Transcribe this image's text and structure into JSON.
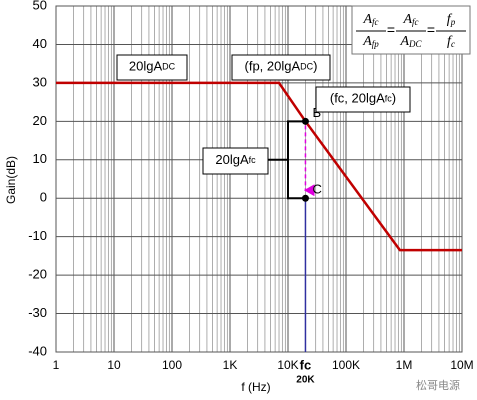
{
  "chart_data": {
    "type": "line",
    "xscale": "log",
    "xlim": [
      1,
      10000000
    ],
    "ylim": [
      -40,
      50
    ],
    "xticks": [
      {
        "value": 1,
        "label": "1"
      },
      {
        "value": 10,
        "label": "10"
      },
      {
        "value": 100,
        "label": "100"
      },
      {
        "value": 1000,
        "label": "1K"
      },
      {
        "value": 10000,
        "label": "10K"
      },
      {
        "value": 100000,
        "label": "100K"
      },
      {
        "value": 1000000,
        "label": "1M"
      },
      {
        "value": 10000000,
        "label": "10M"
      }
    ],
    "yticks": [
      -40,
      -30,
      -20,
      -10,
      0,
      10,
      20,
      30,
      40,
      50
    ],
    "grid": true,
    "xlabel": "f (Hz)",
    "ylabel": "Gain(dB)",
    "x": [
      1,
      7000,
      20000,
      850000,
      10000000
    ],
    "values": [
      30,
      30,
      20,
      -13.5,
      -13.5
    ],
    "color": "#c00000",
    "points": [
      {
        "label": "B",
        "x": 20000,
        "y": 20
      },
      {
        "label": "C",
        "x": 20000,
        "y": 0
      }
    ],
    "marker_x": {
      "value": 20000,
      "label": "fc",
      "sublabel": "20K"
    },
    "annotations": [
      {
        "text": "20lgA",
        "sub": "DC"
      },
      {
        "text": "(fp, 20lgA",
        "sub": "DC",
        "tail": ")"
      },
      {
        "text": "(fc, 20lgA",
        "sub": "fc",
        "tail": ")"
      },
      {
        "text": "20lgA",
        "sub": "fc"
      }
    ],
    "formula": [
      {
        "num": "A",
        "num_sub": "fc",
        "den": "A",
        "den_sub": "fp"
      },
      {
        "num": "A",
        "num_sub": "fc",
        "den": "A",
        "den_sub": "DC"
      },
      {
        "num": "f",
        "num_sub": "p",
        "den": "f",
        "den_sub": "c"
      }
    ],
    "formula_sep": "=",
    "watermark": "松哥电源"
  }
}
